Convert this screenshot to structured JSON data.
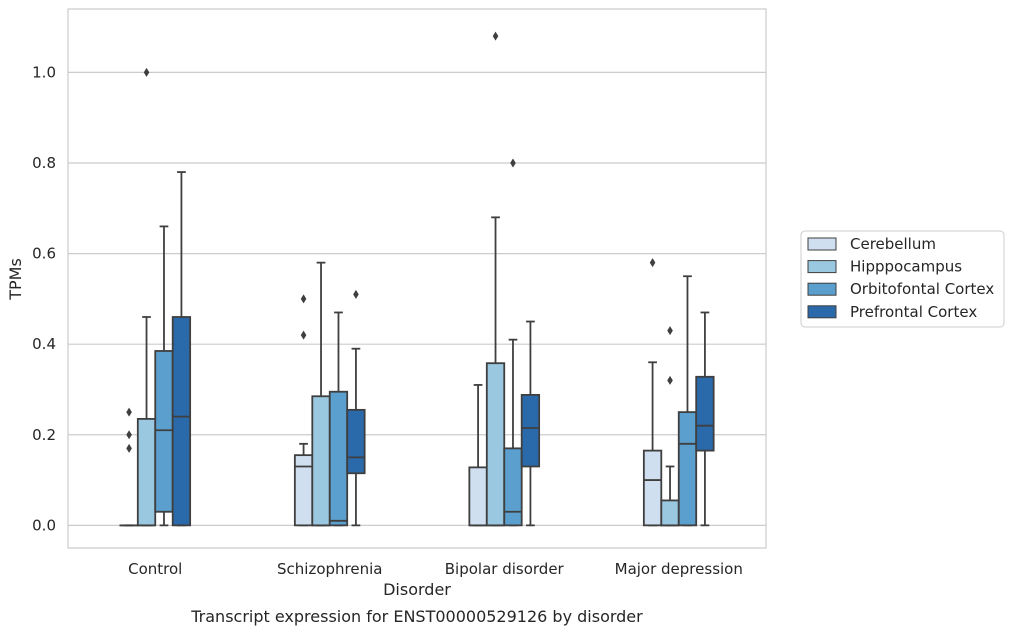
{
  "chart_data": {
    "type": "box",
    "title": "",
    "caption": "Transcript expression for ENST00000529126 by disorder",
    "xlabel": "Disorder",
    "ylabel": "TPMs",
    "ylim": [
      -0.05,
      1.14
    ],
    "yticks": [
      0.0,
      0.2,
      0.4,
      0.6,
      0.8,
      1.0
    ],
    "ytick_labels": [
      "0.0",
      "0.2",
      "0.4",
      "0.6",
      "0.8",
      "1.0"
    ],
    "grid": "horizontal",
    "legend_placement": "right",
    "categories": [
      "Control",
      "Schizophrenia",
      "Bipolar disorder",
      "Major depression"
    ],
    "series": [
      {
        "name": "Cerebellum",
        "color": "#cfdff0",
        "boxes": [
          {
            "whislo": 0.0,
            "q1": 0.0,
            "med": 0.0,
            "q3": 0.0,
            "whishi": 0.0,
            "fliers": [
              0.17,
              0.2,
              0.25
            ]
          },
          {
            "whislo": 0.0,
            "q1": 0.0,
            "med": 0.13,
            "q3": 0.155,
            "whishi": 0.18,
            "fliers": [
              0.42,
              0.5
            ]
          },
          {
            "whislo": 0.0,
            "q1": 0.0,
            "med": 0.0,
            "q3": 0.128,
            "whishi": 0.31,
            "fliers": []
          },
          {
            "whislo": 0.0,
            "q1": 0.0,
            "med": 0.1,
            "q3": 0.165,
            "whishi": 0.36,
            "fliers": [
              0.58
            ]
          }
        ]
      },
      {
        "name": "Hipppocampus",
        "color": "#9ac8e0",
        "boxes": [
          {
            "whislo": 0.0,
            "q1": 0.0,
            "med": 0.0,
            "q3": 0.235,
            "whishi": 0.46,
            "fliers": [
              1.0
            ]
          },
          {
            "whislo": 0.0,
            "q1": 0.0,
            "med": 0.0,
            "q3": 0.285,
            "whishi": 0.58,
            "fliers": []
          },
          {
            "whislo": 0.0,
            "q1": 0.0,
            "med": 0.0,
            "q3": 0.358,
            "whishi": 0.68,
            "fliers": [
              1.08
            ]
          },
          {
            "whislo": 0.0,
            "q1": 0.0,
            "med": 0.0,
            "q3": 0.055,
            "whishi": 0.13,
            "fliers": [
              0.32,
              0.43
            ]
          }
        ]
      },
      {
        "name": "Orbitofontal Cortex",
        "color": "#5a9fcd",
        "boxes": [
          {
            "whislo": 0.0,
            "q1": 0.03,
            "med": 0.21,
            "q3": 0.385,
            "whishi": 0.66,
            "fliers": []
          },
          {
            "whislo": 0.0,
            "q1": 0.0,
            "med": 0.01,
            "q3": 0.295,
            "whishi": 0.47,
            "fliers": []
          },
          {
            "whislo": 0.0,
            "q1": 0.0,
            "med": 0.03,
            "q3": 0.17,
            "whishi": 0.41,
            "fliers": [
              0.8
            ]
          },
          {
            "whislo": 0.0,
            "q1": 0.0,
            "med": 0.18,
            "q3": 0.25,
            "whishi": 0.55,
            "fliers": []
          }
        ]
      },
      {
        "name": "Prefrontal Cortex",
        "color": "#2a6aab",
        "boxes": [
          {
            "whislo": 0.0,
            "q1": 0.0,
            "med": 0.24,
            "q3": 0.46,
            "whishi": 0.78,
            "fliers": []
          },
          {
            "whislo": 0.0,
            "q1": 0.115,
            "med": 0.15,
            "q3": 0.255,
            "whishi": 0.39,
            "fliers": [
              0.51
            ]
          },
          {
            "whislo": 0.0,
            "q1": 0.13,
            "med": 0.215,
            "q3": 0.288,
            "whishi": 0.45,
            "fliers": []
          },
          {
            "whislo": 0.0,
            "q1": 0.165,
            "med": 0.22,
            "q3": 0.328,
            "whishi": 0.47,
            "fliers": []
          }
        ]
      }
    ]
  }
}
